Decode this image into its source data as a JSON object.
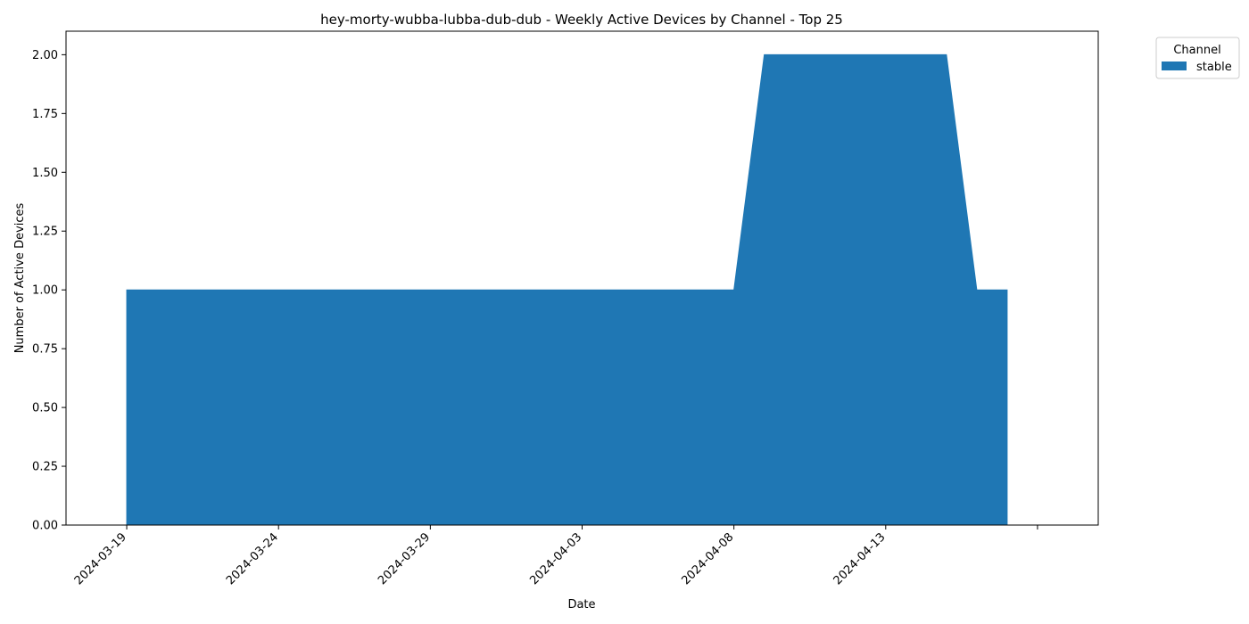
{
  "chart_data": {
    "type": "area",
    "title": "hey-morty-wubba-lubba-dub-dub - Weekly Active Devices by Channel - Top 25",
    "xlabel": "Date",
    "ylabel": "Number of Active Devices",
    "x": [
      "2024-03-19",
      "2024-03-20",
      "2024-03-21",
      "2024-03-22",
      "2024-03-23",
      "2024-03-24",
      "2024-03-25",
      "2024-03-26",
      "2024-03-27",
      "2024-03-28",
      "2024-03-29",
      "2024-03-30",
      "2024-03-31",
      "2024-04-01",
      "2024-04-02",
      "2024-04-03",
      "2024-04-04",
      "2024-04-05",
      "2024-04-06",
      "2024-04-07",
      "2024-04-08",
      "2024-04-09",
      "2024-04-10",
      "2024-04-11",
      "2024-04-12",
      "2024-04-13",
      "2024-04-14",
      "2024-04-15",
      "2024-04-16",
      "2024-04-17"
    ],
    "series": [
      {
        "name": "stable",
        "color": "#1f77b4",
        "values": [
          1,
          1,
          1,
          1,
          1,
          1,
          1,
          1,
          1,
          1,
          1,
          1,
          1,
          1,
          1,
          1,
          1,
          1,
          1,
          1,
          1,
          2,
          2,
          2,
          2,
          2,
          2,
          2,
          1,
          1
        ]
      }
    ],
    "xticks": [
      "2024-03-19",
      "2024-03-24",
      "2024-03-29",
      "2024-04-03",
      "2024-04-08",
      "2024-04-13"
    ],
    "xlim": [
      "2024-03-17",
      "2024-04-20"
    ],
    "ylim": [
      0,
      2.1
    ],
    "yticks": [
      "0.00",
      "0.25",
      "0.50",
      "0.75",
      "1.00",
      "1.25",
      "1.50",
      "1.75",
      "2.00"
    ],
    "grid": false,
    "legend": {
      "title": "Channel",
      "placement": "outside-top-right"
    }
  }
}
